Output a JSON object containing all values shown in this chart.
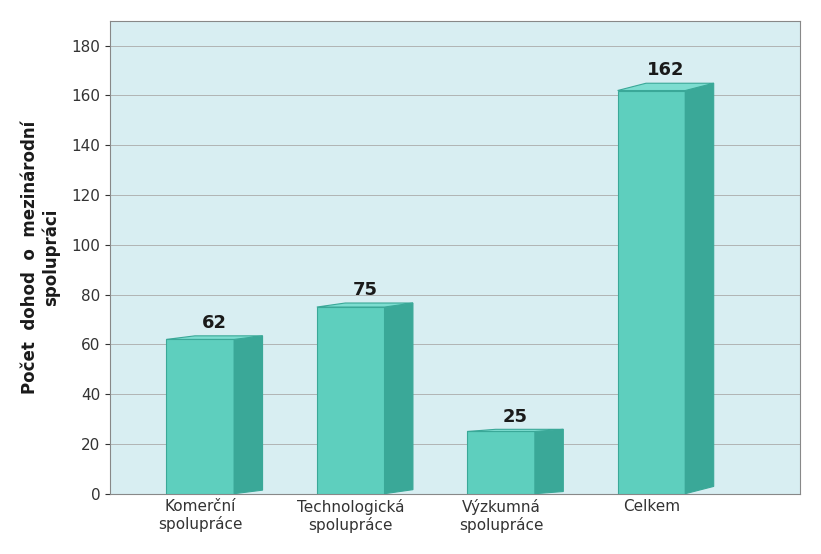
{
  "categories": [
    "Komerční\nspolupráce",
    "Technologická\nspolupráce",
    "Výzkumná\nspolupráce",
    "Celkem"
  ],
  "values": [
    62,
    75,
    25,
    162
  ],
  "bar_color_front": "#5ECFBE",
  "bar_color_side": "#3AA898",
  "bar_color_top": "#7DDDD0",
  "bar_edge_color": "#3AA898",
  "plot_bg_color": "#D8EEF2",
  "fig_bg_color": "#FFFFFF",
  "ylabel": "Počet  dohod  o  mezinárodní\nspolupráci",
  "ylim": [
    0,
    190
  ],
  "yticks": [
    0,
    20,
    40,
    60,
    80,
    100,
    120,
    140,
    160,
    180
  ],
  "value_fontsize": 13,
  "ylabel_fontsize": 12,
  "tick_fontsize": 11,
  "bar_width": 0.45,
  "depth": 0.12,
  "value_color": "#1a1a1a",
  "grid_color": "#AAAAAA",
  "spine_color": "#888888"
}
